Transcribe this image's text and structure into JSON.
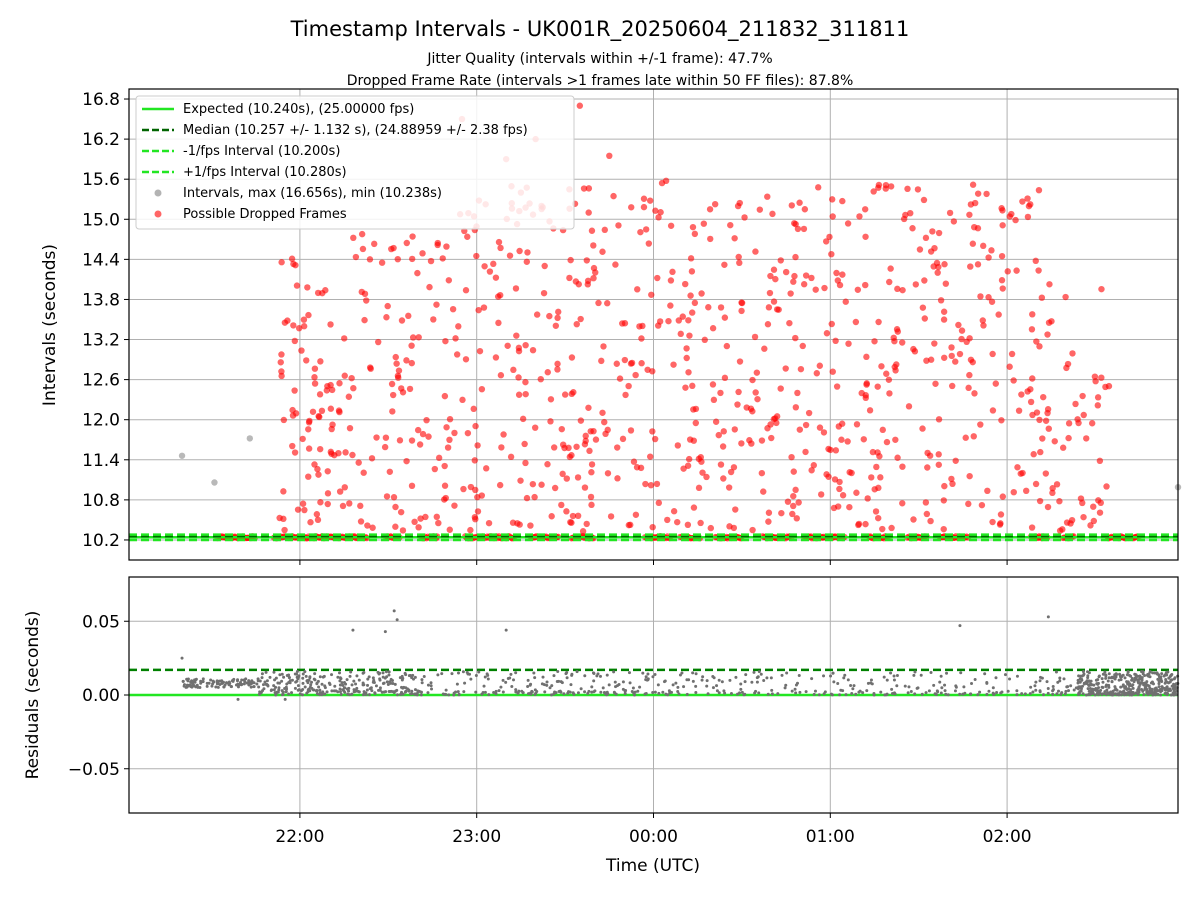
{
  "chart_data": [
    {
      "type": "scatter",
      "title": "Timestamp Intervals - UK001R_20250604_211832_311811",
      "subtitle_lines": [
        "Jitter Quality (intervals within +/-1 frame): 47.7%",
        "Dropped Frame Rate (intervals >1 frames late within 50 FF files): 87.8%"
      ],
      "xlabel": "",
      "ylabel": "Intervals (seconds)",
      "ylim": [
        9.9,
        16.95
      ],
      "yticks": [
        10.2,
        10.8,
        11.4,
        12.0,
        12.6,
        13.2,
        13.8,
        14.4,
        15.0,
        15.6,
        16.2,
        16.8
      ],
      "ytick_labels": [
        "10.2",
        "10.8",
        "11.4",
        "12.0",
        "12.6",
        "13.2",
        "13.8",
        "14.4",
        "15.0",
        "15.6",
        "16.2",
        "16.8"
      ],
      "xlim": [
        "2025-06-04 21:02",
        "2025-06-05 02:58"
      ],
      "xticks": [
        "2025-06-04 22:00",
        "2025-06-04 23:00",
        "2025-06-05 00:00",
        "2025-06-05 01:00",
        "2025-06-05 02:00"
      ],
      "grid": true,
      "legend_position": "upper-left",
      "reference_lines": [
        {
          "name": "Expected (10.240s), (25.00000 fps)",
          "y": 10.24,
          "color": "#22e622",
          "style": "solid"
        },
        {
          "name": "Median (10.257 +/- 1.132 s), (24.88959 +/- 2.38 fps)",
          "y": 10.257,
          "color": "#006400",
          "style": "dashed"
        },
        {
          "name": "-1/fps Interval (10.200s)",
          "y": 10.2,
          "color": "#22e622",
          "style": "dashed"
        },
        {
          "name": "+1/fps Interval (10.280s)",
          "y": 10.28,
          "color": "#22e622",
          "style": "dashed"
        }
      ],
      "series": [
        {
          "name": "Intervals, max (16.656s), min (10.238s)",
          "color": "#808080",
          "points": [
            [
              "2025-06-04 21:20",
              11.46
            ],
            [
              "2025-06-04 21:31",
              11.06
            ],
            [
              "2025-06-04 21:43",
              11.72
            ],
            [
              "2025-06-05 02:58",
              10.99
            ]
          ]
        },
        {
          "name": "Possible Dropped Frames",
          "color": "#ff0000",
          "baseline_value": 10.24,
          "baseline_ranges": [
            [
              "2025-06-04 21:32",
              "2025-06-04 21:45"
            ],
            [
              "2025-06-04 21:51",
              "2025-06-04 22:23"
            ],
            [
              "2025-06-04 22:29",
              "2025-06-04 22:34"
            ],
            [
              "2025-06-04 22:41",
              "2025-06-04 22:47"
            ],
            [
              "2025-06-04 22:56",
              "2025-06-04 23:13"
            ],
            [
              "2025-06-04 23:18",
              "2025-06-04 23:28"
            ],
            [
              "2025-06-04 23:32",
              "2025-06-04 23:40"
            ],
            [
              "2025-06-04 23:57",
              "2025-06-05 00:06"
            ],
            [
              "2025-06-05 00:09",
              "2025-06-05 00:16"
            ],
            [
              "2025-06-05 00:21",
              "2025-06-05 00:30"
            ],
            [
              "2025-06-05 00:37",
              "2025-06-05 00:47"
            ],
            [
              "2025-06-05 00:51",
              "2025-06-05 01:05"
            ],
            [
              "2025-06-05 01:13",
              "2025-06-05 01:20"
            ],
            [
              "2025-06-05 01:26",
              "2025-06-05 01:33"
            ],
            [
              "2025-06-05 01:37",
              "2025-06-05 01:47"
            ],
            [
              "2025-06-05 02:08",
              "2025-06-05 02:14"
            ],
            [
              "2025-06-05 02:19",
              "2025-06-05 02:23"
            ],
            [
              "2025-06-05 02:34",
              "2025-06-05 02:45"
            ]
          ],
          "scatter_span": [
            "2025-06-04 21:52",
            "2025-06-05 02:35"
          ],
          "scatter_count": 900,
          "scatter_range": [
            10.28,
            16.7
          ]
        }
      ]
    },
    {
      "type": "scatter",
      "title": "",
      "xlabel": "Time (UTC)",
      "ylabel": "Residuals (seconds)",
      "ylim": [
        -0.08,
        0.08
      ],
      "yticks": [
        -0.05,
        0.0,
        0.05
      ],
      "ytick_labels": [
        "−0.05",
        "0.00",
        "0.05"
      ],
      "xlim": [
        "2025-06-04 21:02",
        "2025-06-05 02:58"
      ],
      "xticks": [
        "2025-06-04 22:00",
        "2025-06-04 23:00",
        "2025-06-05 00:00",
        "2025-06-05 01:00",
        "2025-06-05 02:00"
      ],
      "xtick_labels": [
        "22:00",
        "23:00",
        "00:00",
        "01:00",
        "02:00"
      ],
      "grid": true,
      "reference_lines": [
        {
          "y": 0.0,
          "color": "#22e622",
          "style": "solid"
        },
        {
          "y": 0.017,
          "color": "#008000",
          "style": "dashed"
        }
      ],
      "series": [
        {
          "color": "#707070",
          "outliers": [
            [
              "2025-06-04 21:20",
              0.025
            ],
            [
              "2025-06-04 22:18",
              0.044
            ],
            [
              "2025-06-04 22:29",
              0.043
            ],
            [
              "2025-06-04 22:32",
              0.057
            ],
            [
              "2025-06-04 22:33",
              0.051
            ],
            [
              "2025-06-04 23:10",
              0.044
            ],
            [
              "2025-06-05 01:44",
              0.047
            ],
            [
              "2025-06-05 02:14",
              0.053
            ],
            [
              "2025-06-04 21:39",
              -0.003
            ],
            [
              "2025-06-04 21:55",
              -0.003
            ]
          ],
          "dense_band": {
            "span": [
              "2025-06-04 21:20",
              "2025-06-04 21:46"
            ],
            "value": 0.008
          },
          "dense_tail": {
            "span": [
              "2025-06-05 02:24",
              "2025-06-05 02:58"
            ],
            "range": [
              0.0,
              0.016
            ]
          },
          "scatter_span": [
            "2025-06-04 21:46",
            "2025-06-05 02:24"
          ],
          "scatter_range": [
            0.0,
            0.016
          ]
        }
      ]
    }
  ]
}
